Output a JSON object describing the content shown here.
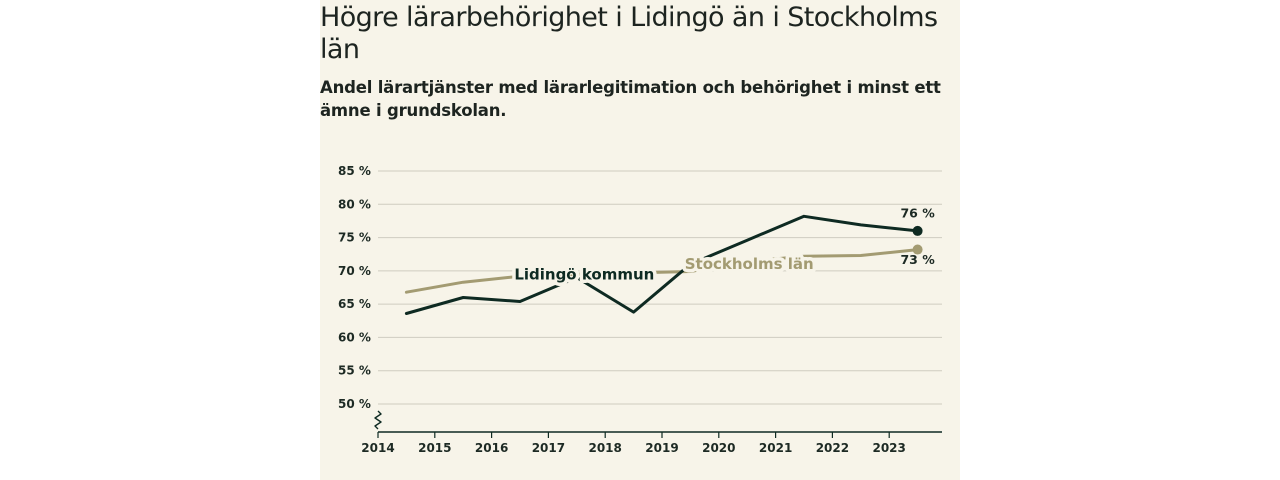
{
  "title": "Högre lärarbehörighet i Lidingö än i Stockholms län",
  "subtitle": "Andel lärartjänster med lärarlegitimation och behörighet i minst ett ämne i grundskolan.",
  "colors": {
    "background": "#f7f4e9",
    "lidingo": "#0e2a22",
    "stockholm": "#a39b72",
    "grid": "#cfccc0",
    "axis": "#0e2a22"
  },
  "chart_data": {
    "type": "line",
    "title": "Högre lärarbehörighet i Lidingö än i Stockholms län",
    "subtitle": "Andel lärartjänster med lärarlegitimation och behörighet i minst ett ämne i grundskolan.",
    "xlabel": "",
    "ylabel": "",
    "x_ticks": [
      "2014",
      "2015",
      "2016",
      "2017",
      "2018",
      "2019",
      "2020",
      "2021",
      "2022",
      "2023"
    ],
    "y_ticks": [
      "50 %",
      "55 %",
      "60 %",
      "65 %",
      "70 %",
      "75 %",
      "80 %",
      "85 %"
    ],
    "ylim": [
      46,
      86
    ],
    "y_axis_break": true,
    "grid": true,
    "series": [
      {
        "name": "Stockholms län",
        "label": "Stockholms län",
        "color_key": "stockholm",
        "x": [
          2014.5,
          2015.5,
          2016.5,
          2017.5,
          2018.5,
          2019.5,
          2020.5,
          2021.5,
          2022.5,
          2023.5
        ],
        "values": [
          66.8,
          68.3,
          69.2,
          69.5,
          69.7,
          69.9,
          71.4,
          72.2,
          72.3,
          73.2
        ],
        "end_label": "73 %"
      },
      {
        "name": "Lidingö kommun",
        "label": "Lidingö kommun",
        "color_key": "lidingo",
        "x": [
          2014.5,
          2015.5,
          2016.5,
          2017.5,
          2018.5,
          2019.5,
          2020.5,
          2021.5,
          2022.5,
          2023.5
        ],
        "values": [
          63.6,
          66.0,
          65.4,
          69.0,
          63.8,
          71.0,
          74.6,
          78.2,
          76.9,
          76.0
        ],
        "end_label": "76 %"
      }
    ]
  }
}
